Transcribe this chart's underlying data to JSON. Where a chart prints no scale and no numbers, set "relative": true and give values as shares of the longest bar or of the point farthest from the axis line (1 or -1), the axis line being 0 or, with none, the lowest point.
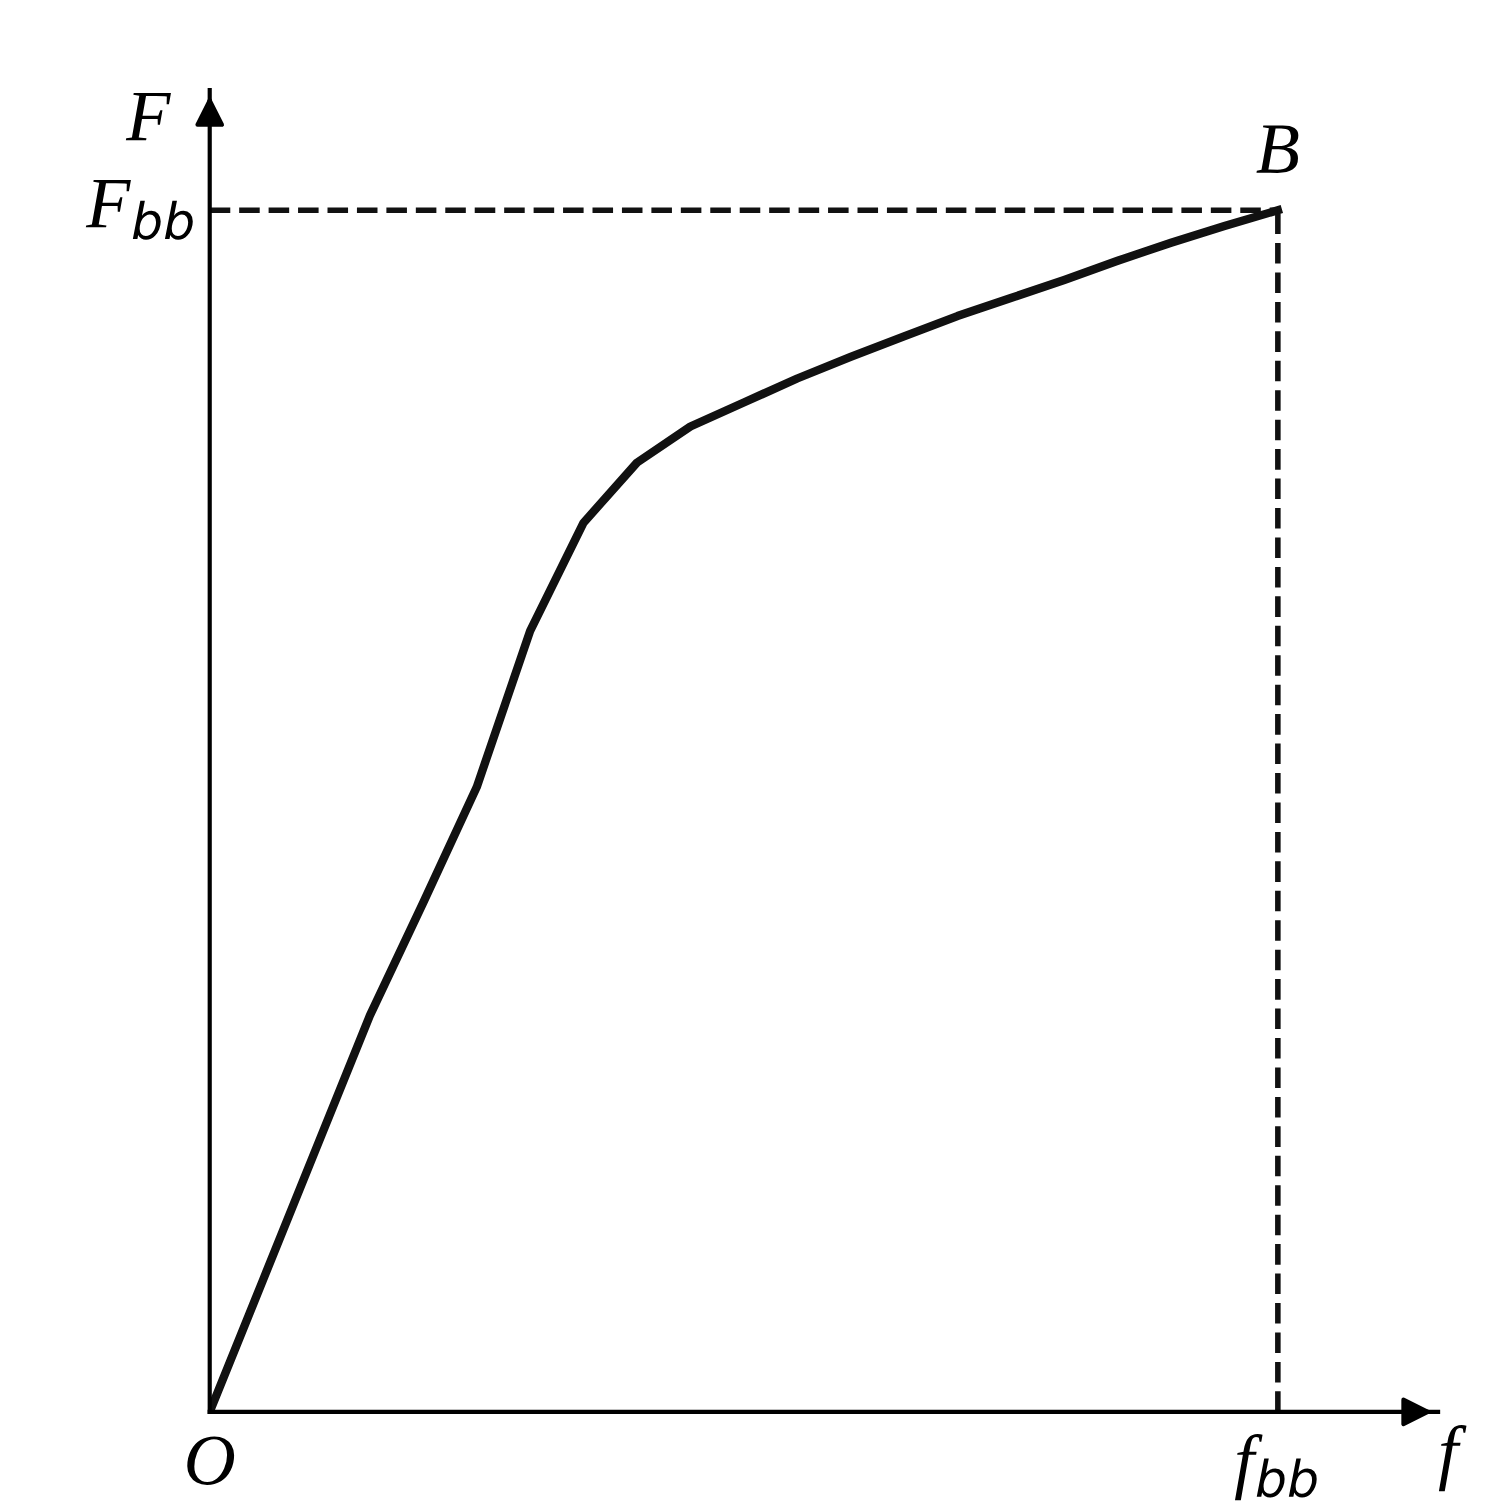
{
  "chart_data": {
    "type": "line",
    "relative": true,
    "xlabel": "f",
    "ylabel": "F",
    "categories": [
      null,
      null,
      null,
      null,
      null,
      null,
      null,
      null,
      null,
      null,
      null,
      null,
      null,
      null,
      null,
      null,
      null,
      null,
      null,
      null,
      null
    ],
    "series": [
      {
        "color": "#111111",
        "values": [
          0,
          0.11,
          0.22,
          0.33,
          0.424,
          0.52,
          0.65,
          0.74,
          0.79,
          0.82,
          0.84,
          0.86,
          0.878,
          0.895,
          0.912,
          0.927,
          0.942,
          0.958,
          0.973,
          0.987,
          1
        ]
      }
    ],
    "ref_lines": [
      {
        "axis": "y",
        "value": 1,
        "label": "F$_{bb}$",
        "line_style": "dashed",
        "color": "#111111"
      }
    ],
    "annotations": [
      "O",
      "f$_{bb}$",
      "B"
    ],
    "marker": "none",
    "line_style": "solid",
    "grid": false,
    "legend": false
  }
}
